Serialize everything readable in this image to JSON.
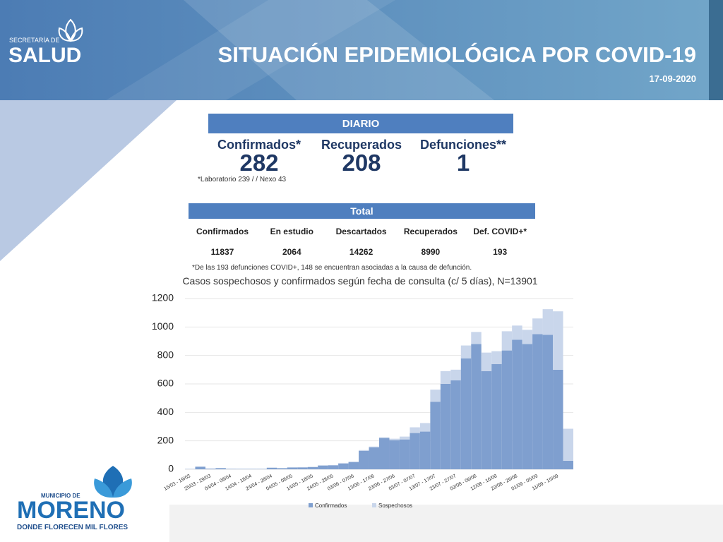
{
  "header": {
    "org_small": "SECRETARÍA DE",
    "org": "SALUD",
    "title": "SITUACIÓN EPIDEMIOLÓGICA POR COVID-19",
    "date": "17-09-2020"
  },
  "daily": {
    "title": "DIARIO",
    "items": [
      {
        "label": "Confirmados*",
        "value": 282
      },
      {
        "label": "Recuperados",
        "value": 208
      },
      {
        "label": "Defunciones**",
        "value": 1
      }
    ],
    "note": "*Laboratorio 239 / / Nexo 43"
  },
  "totals": {
    "title": "Total",
    "headers": [
      "Confirmados",
      "En estudio",
      "Descartados",
      "Recuperados",
      "Def. COVID+*"
    ],
    "values": [
      11837,
      2064,
      14262,
      8990,
      193
    ],
    "note": "*De las 193 defunciones COVID+, 148 se encuentran asociadas a la causa de defunción."
  },
  "footer": {
    "municipio": "MUNICIPIO DE",
    "name": "MORENO",
    "tagline": "DONDE FLORECEN MIL FLORES"
  },
  "chart_data": {
    "type": "bar",
    "stacked": true,
    "title": "Casos sospechosos y confirmados según fecha de consulta (c/ 5 días), N=13901",
    "categories": [
      "15/03 - 19/03",
      null,
      "25/03 - 29/03",
      null,
      "04/04 - 08/04",
      null,
      "14/04 - 18/04",
      null,
      "24/04 - 28/04",
      null,
      "04/05 - 08/05",
      null,
      "14/05 - 18/05",
      null,
      "24/05 - 28/05",
      null,
      "03/06 - 07/06",
      null,
      "13/06 - 17/06",
      null,
      "23/06 - 27/06",
      null,
      "03/07 - 07/07",
      null,
      "13/07 - 17/07",
      null,
      "23/07 - 27/07",
      null,
      "02/08 - 06/08",
      null,
      "12/08 - 16/08",
      null,
      "22/08 - 26/08",
      null,
      "01/09 - 05/09",
      null,
      "11/09 - 15/09",
      null
    ],
    "series": [
      {
        "name": "Confirmados",
        "color": "#7f9fcf",
        "values": [
          2,
          18,
          5,
          8,
          3,
          3,
          3,
          3,
          10,
          8,
          12,
          13,
          15,
          25,
          28,
          40,
          50,
          130,
          155,
          220,
          205,
          210,
          255,
          265,
          475,
          600,
          625,
          780,
          880,
          690,
          740,
          835,
          910,
          880,
          950,
          945,
          700,
          60
        ]
      },
      {
        "name": "Sospechosos",
        "color": "#c9d6eb",
        "values": [
          0,
          2,
          0,
          2,
          1,
          0,
          0,
          0,
          3,
          0,
          3,
          2,
          3,
          5,
          2,
          5,
          5,
          5,
          5,
          5,
          10,
          20,
          40,
          60,
          85,
          90,
          75,
          90,
          85,
          130,
          90,
          135,
          100,
          100,
          110,
          180,
          410,
          225
        ]
      }
    ],
    "ylim": [
      0,
      1200
    ],
    "yticks": [
      0,
      200,
      400,
      600,
      800,
      1000,
      1200
    ],
    "grid": true,
    "legend": "bottom"
  }
}
